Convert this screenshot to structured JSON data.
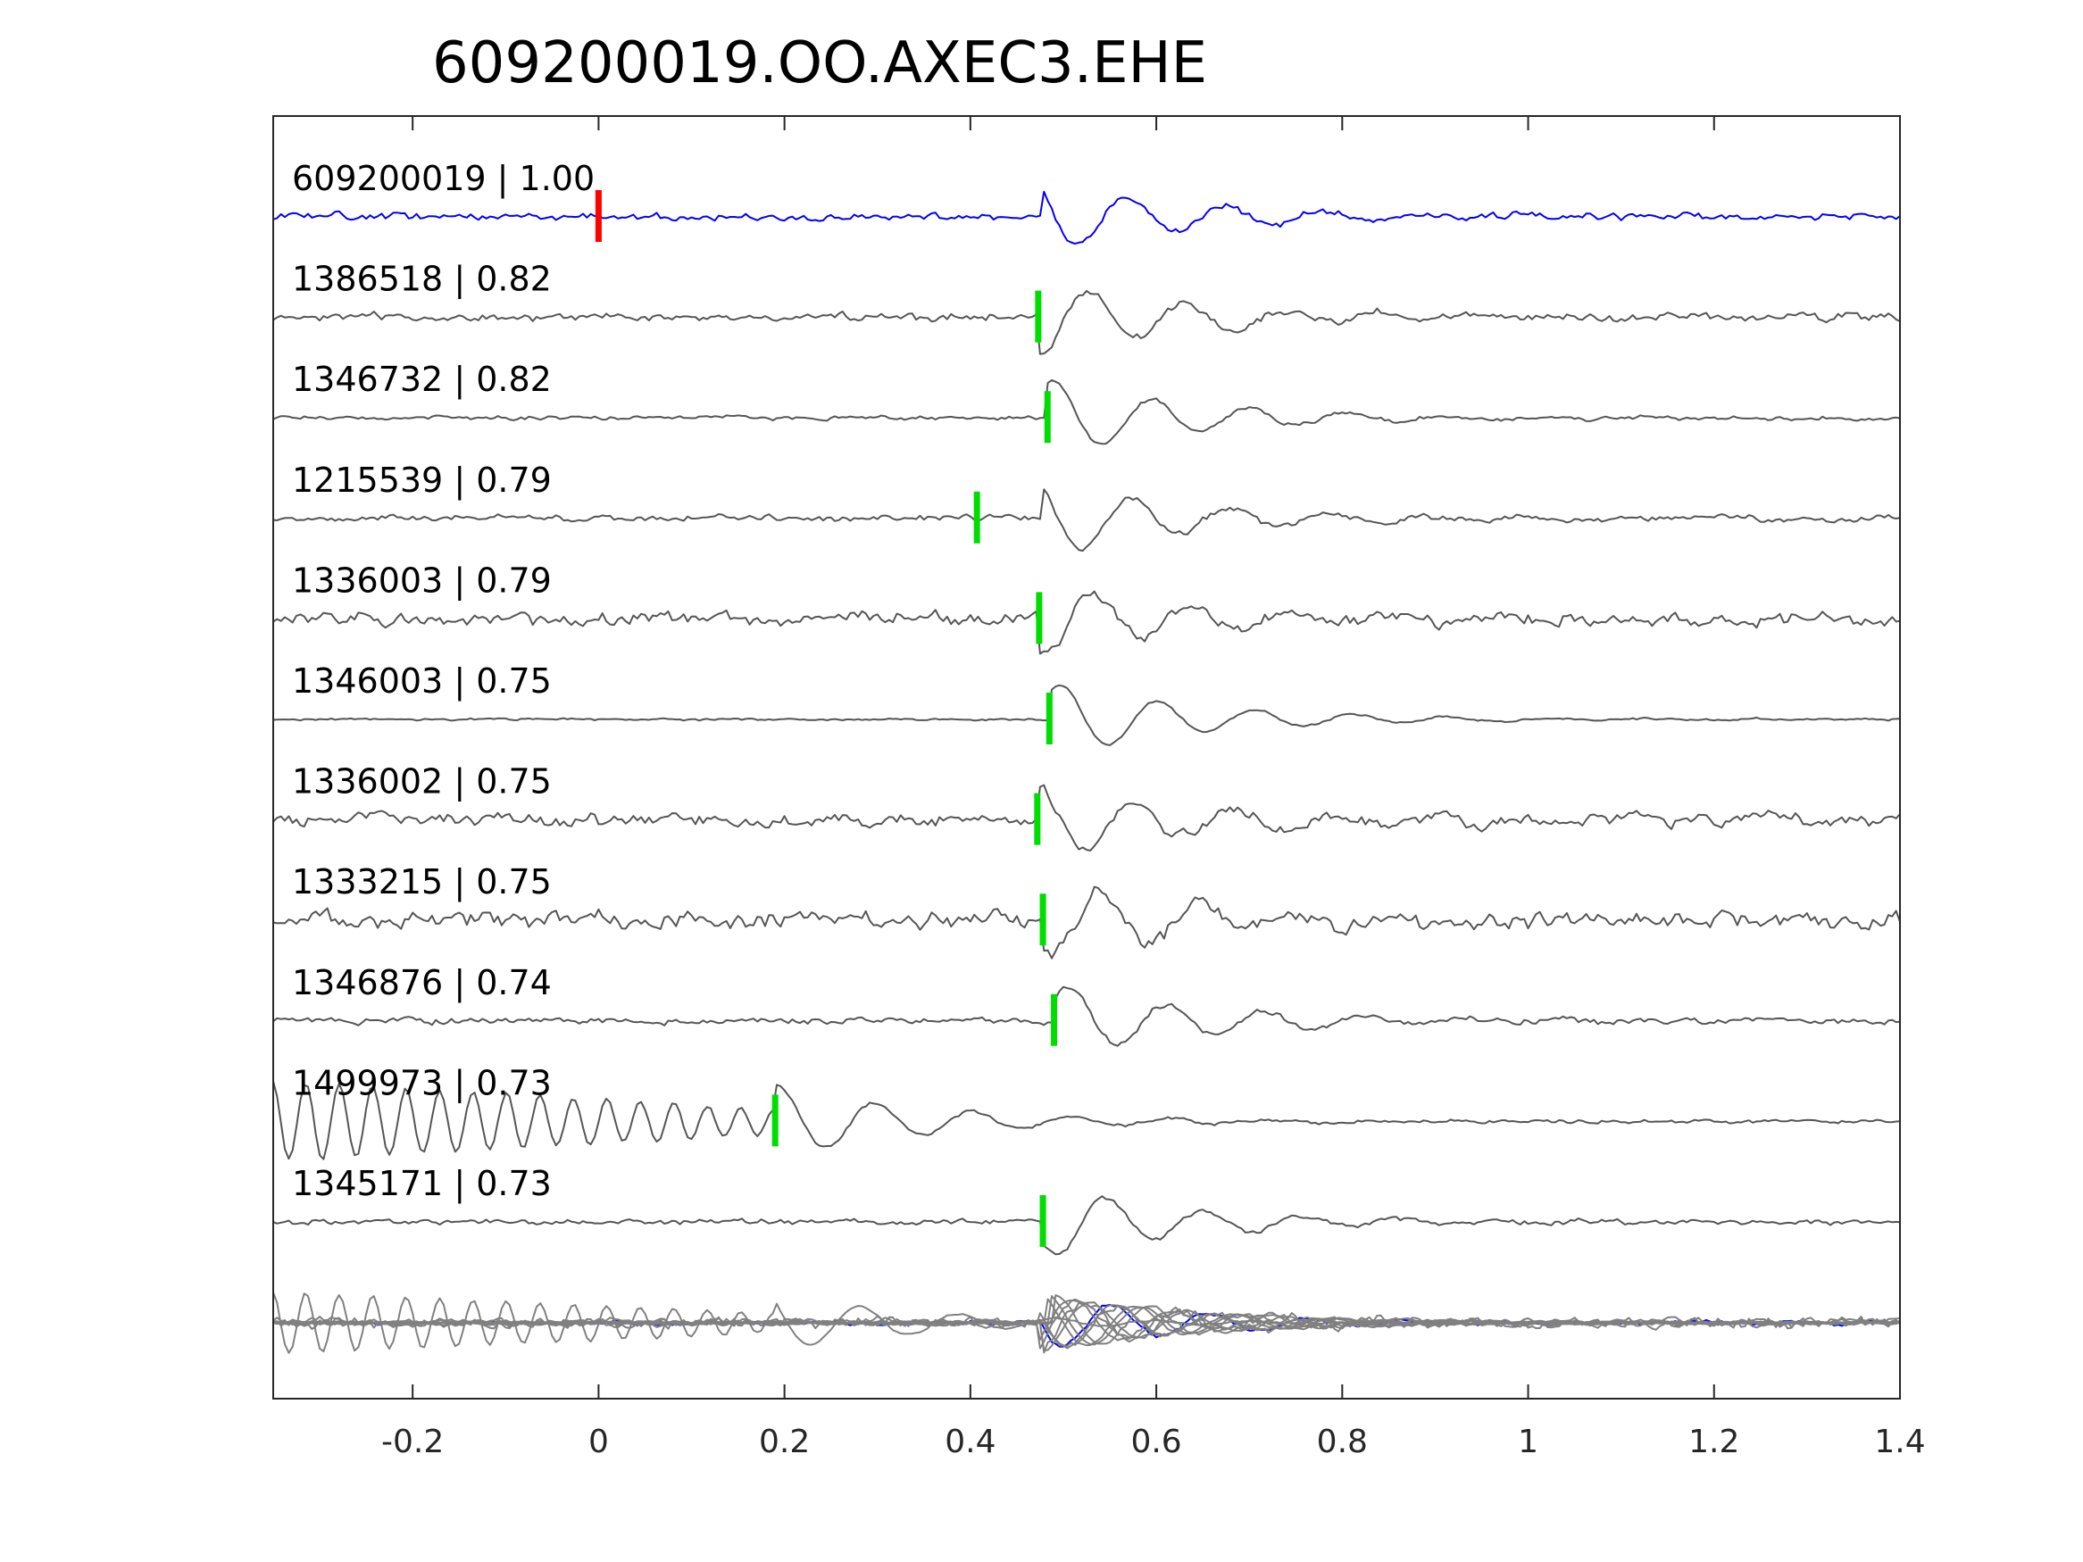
{
  "chart_data": {
    "type": "line",
    "title": "609200019.OO.AXEC3.EHE",
    "xlabel": "",
    "ylabel": "",
    "xlim": [
      -0.35,
      1.4
    ],
    "x_ticks": [
      -0.2,
      0,
      0.2,
      0.4,
      0.6,
      0.8,
      1,
      1.2,
      1.4
    ],
    "x_tick_labels": [
      "-0.2",
      "0",
      "0.2",
      "0.4",
      "0.6",
      "0.8",
      "1",
      "1.2",
      "1.4"
    ],
    "grid": false,
    "colors": {
      "template": "#0000ff",
      "match": "#555555",
      "stack": "#808080",
      "pick_primary": "#ff0000",
      "pick_match": "#00dd00"
    },
    "series": [
      {
        "name": "609200019 | 1.00",
        "pick": 0.0,
        "pick_type": "primary",
        "phase": 0.475,
        "seed": 11,
        "noise": 0.25,
        "pre_osc": 0
      },
      {
        "name": "1386518 | 0.82",
        "pick": 0.473,
        "pick_type": "match",
        "phase": 0.473,
        "seed": 23,
        "noise": 0.28,
        "pre_osc": 0
      },
      {
        "name": "1346732 | 0.82",
        "pick": 0.483,
        "pick_type": "match",
        "phase": 0.483,
        "seed": 37,
        "noise": 0.15,
        "pre_osc": 0
      },
      {
        "name": "1215539 | 0.79",
        "pick": 0.407,
        "pick_type": "match",
        "phase": 0.475,
        "seed": 41,
        "noise": 0.22,
        "pre_osc": 0
      },
      {
        "name": "1336003 | 0.79",
        "pick": 0.474,
        "pick_type": "match",
        "phase": 0.474,
        "seed": 53,
        "noise": 0.45,
        "pre_osc": 0
      },
      {
        "name": "1346003 | 0.75",
        "pick": 0.485,
        "pick_type": "match",
        "phase": 0.485,
        "seed": 67,
        "noise": 0.08,
        "pre_osc": 0
      },
      {
        "name": "1336002 | 0.75",
        "pick": 0.472,
        "pick_type": "match",
        "phase": 0.472,
        "seed": 71,
        "noise": 0.45,
        "pre_osc": 0
      },
      {
        "name": "1333215 | 0.75",
        "pick": 0.478,
        "pick_type": "match",
        "phase": 0.478,
        "seed": 83,
        "noise": 0.6,
        "pre_osc": 0
      },
      {
        "name": "1346876 | 0.74",
        "pick": 0.49,
        "pick_type": "match",
        "phase": 0.49,
        "seed": 97,
        "noise": 0.22,
        "pre_osc": 0
      },
      {
        "name": "1499973 | 0.73",
        "pick": 0.19,
        "pick_type": "match",
        "phase": 0.19,
        "seed": 101,
        "noise": 0.12,
        "pre_osc": 1
      },
      {
        "name": "1345171 | 0.73",
        "pick": 0.478,
        "pick_type": "match",
        "phase": 0.478,
        "seed": 113,
        "noise": 0.18,
        "pre_osc": 0
      }
    ],
    "stack": {
      "description_shown": false
    }
  }
}
